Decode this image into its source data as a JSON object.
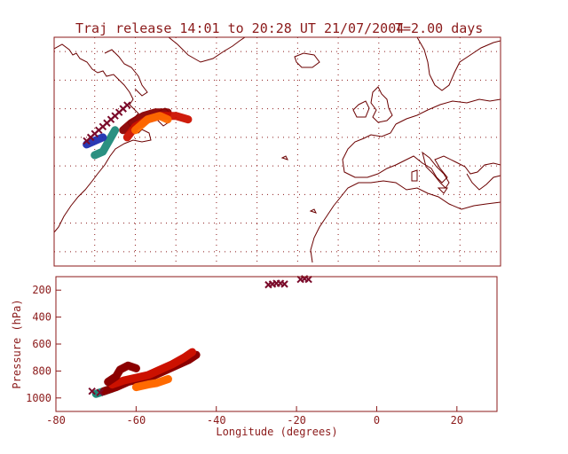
{
  "title": {
    "release": "Traj release 14:01 to 20:28 UT 21/07/2004",
    "duration": "T=2.00 days"
  },
  "colors": {
    "frame": "#8b1a1a",
    "coast": "#6b0000",
    "grid": "#8b1a1a",
    "traj_dark_red": "#8b0000",
    "traj_red": "#cc1100",
    "traj_orange": "#ff6a00",
    "traj_orange_light": "#ff8c00",
    "traj_teal": "#1f8a7a",
    "traj_blue": "#1f2fb0",
    "release_marker": "#7a0a2a"
  },
  "chart_data": [
    {
      "type": "map",
      "panel": "trajectory-map",
      "grid": true,
      "region": "North Atlantic / Europe",
      "release_markers": "x",
      "trajectories": [
        {
          "color": "#8b0000",
          "points": [
            [
              -63,
              48
            ],
            [
              -61,
              50
            ],
            [
              -58,
              52
            ],
            [
              -55,
              53
            ],
            [
              -52,
              53
            ]
          ]
        },
        {
          "color": "#cc1100",
          "points": [
            [
              -62,
              46
            ],
            [
              -60,
              49
            ],
            [
              -57,
              51
            ],
            [
              -54,
              52
            ],
            [
              -50,
              52
            ],
            [
              -47,
              51
            ]
          ]
        },
        {
          "color": "#ff6a00",
          "points": [
            [
              -60,
              48
            ],
            [
              -57,
              51
            ],
            [
              -54,
              52
            ],
            [
              -52,
              51
            ]
          ]
        },
        {
          "color": "#1f8a7a",
          "points": [
            [
              -70,
              41
            ],
            [
              -68,
              42
            ],
            [
              -67,
              44
            ],
            [
              -66,
              46
            ],
            [
              -65,
              48
            ]
          ]
        },
        {
          "color": "#1f2fb0",
          "points": [
            [
              -72,
              44
            ],
            [
              -70,
              45
            ],
            [
              -68,
              46
            ]
          ]
        }
      ]
    },
    {
      "type": "scatter",
      "panel": "pressure-longitude",
      "xlabel": "Longitude  (degrees)",
      "ylabel": "Pressure  (hPa)",
      "xlim": [
        -80,
        30
      ],
      "ylim": [
        1100,
        100
      ],
      "xticks": [
        -80,
        -60,
        -40,
        -20,
        0,
        20
      ],
      "yticks": [
        200,
        400,
        600,
        800,
        1000
      ],
      "release_markers": [
        {
          "x": -71,
          "y": 950
        },
        {
          "x": -69,
          "y": 960
        },
        {
          "x": -27,
          "y": 160
        },
        {
          "x": -26,
          "y": 155
        },
        {
          "x": -25,
          "y": 150
        },
        {
          "x": -24,
          "y": 150
        },
        {
          "x": -23,
          "y": 155
        },
        {
          "x": -19,
          "y": 120
        },
        {
          "x": -18,
          "y": 115
        },
        {
          "x": -17,
          "y": 120
        }
      ],
      "series": [
        {
          "color": "#1f8a7a",
          "points": [
            [
              -70,
              970
            ],
            [
              -68,
              950
            ],
            [
              -66,
              930
            ]
          ]
        },
        {
          "color": "#8b0000",
          "points": [
            [
              -68,
              950
            ],
            [
              -65,
              920
            ],
            [
              -62,
              880
            ],
            [
              -59,
              860
            ],
            [
              -56,
              840
            ],
            [
              -53,
              800
            ],
            [
              -50,
              760
            ],
            [
              -47,
              720
            ],
            [
              -45,
              680
            ]
          ]
        },
        {
          "color": "#cc1100",
          "points": [
            [
              -66,
              900
            ],
            [
              -63,
              870
            ],
            [
              -60,
              850
            ],
            [
              -57,
              830
            ],
            [
              -54,
              790
            ],
            [
              -51,
              750
            ],
            [
              -48,
              700
            ],
            [
              -46,
              660
            ]
          ]
        },
        {
          "color": "#ff6a00",
          "points": [
            [
              -60,
              920
            ],
            [
              -57,
              900
            ],
            [
              -55,
              890
            ],
            [
              -52,
              860
            ]
          ]
        },
        {
          "color": "#8b0000",
          "points": [
            [
              -67,
              880
            ],
            [
              -65,
              840
            ],
            [
              -64,
              790
            ],
            [
              -62,
              760
            ],
            [
              -60,
              780
            ]
          ]
        }
      ]
    }
  ]
}
